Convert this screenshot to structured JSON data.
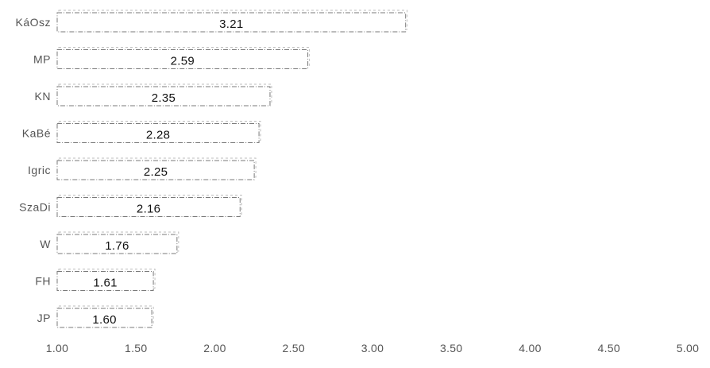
{
  "chart_data": {
    "type": "bar",
    "orientation": "horizontal",
    "categories": [
      "KáOsz",
      "MP",
      "KN",
      "KaBé",
      "Igric",
      "SzaDi",
      "W",
      "FH",
      "JP"
    ],
    "values": [
      3.21,
      2.59,
      2.35,
      2.28,
      2.25,
      2.16,
      1.76,
      1.61,
      1.6
    ],
    "value_labels": [
      "3.21",
      "2.59",
      "2.35",
      "2.28",
      "2.25",
      "2.16",
      "1.76",
      "1.61",
      "1.60"
    ],
    "xlim": [
      1.0,
      5.0
    ],
    "x_ticks": [
      1.0,
      1.5,
      2.0,
      2.5,
      3.0,
      3.5,
      4.0,
      4.5,
      5.0
    ],
    "x_tick_labels": [
      "1.00",
      "1.50",
      "2.00",
      "2.50",
      "3.00",
      "3.50",
      "4.00",
      "4.50",
      "5.00"
    ],
    "title": "",
    "xlabel": "",
    "ylabel": "",
    "grid": false,
    "legend": "none",
    "colors": {
      "bar_fill": "#ffffff",
      "bar_stroke": "#7a7a7a",
      "text": "#555555",
      "value_text": "#111111"
    }
  }
}
